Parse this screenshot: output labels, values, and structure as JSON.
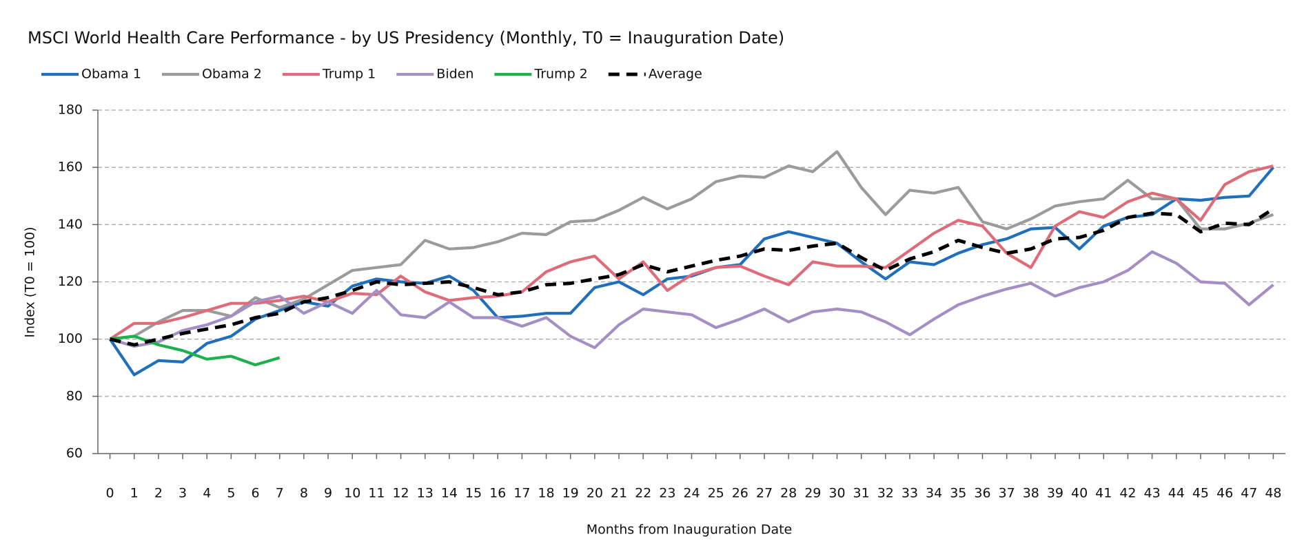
{
  "chart_data": {
    "type": "line",
    "title": "MSCI World Health Care Performance - by US Presidency (Monthly, T0 = Inauguration Date)",
    "x_label": "Months from Inauguration Date",
    "y_label": "Index (T0 = 100)",
    "x": [
      0,
      1,
      2,
      3,
      4,
      5,
      6,
      7,
      8,
      9,
      10,
      11,
      12,
      13,
      14,
      15,
      16,
      17,
      18,
      19,
      20,
      21,
      22,
      23,
      24,
      25,
      26,
      27,
      28,
      29,
      30,
      31,
      32,
      33,
      34,
      35,
      36,
      37,
      38,
      39,
      40,
      41,
      42,
      43,
      44,
      45,
      46,
      47,
      48
    ],
    "xlim": [
      -0.5,
      48.5
    ],
    "xticks": [
      0,
      1,
      2,
      3,
      4,
      5,
      6,
      7,
      8,
      9,
      10,
      11,
      12,
      13,
      14,
      15,
      16,
      17,
      18,
      19,
      20,
      21,
      22,
      23,
      24,
      25,
      26,
      27,
      28,
      29,
      30,
      31,
      32,
      33,
      34,
      35,
      36,
      37,
      38,
      39,
      40,
      41,
      42,
      43,
      44,
      45,
      46,
      47,
      48
    ],
    "ylim": [
      60,
      180
    ],
    "yticks": [
      60,
      80,
      100,
      120,
      140,
      160,
      180
    ],
    "grid": true,
    "legend": "top",
    "series": [
      {
        "name": "Obama 1",
        "color": "#1f6fba",
        "dash": false,
        "values": [
          100,
          87.5,
          92.5,
          92,
          98.5,
          101,
          107,
          110,
          113,
          111.5,
          118.5,
          121,
          120,
          119.5,
          122,
          117,
          107.5,
          108,
          109,
          109,
          118,
          120,
          115.5,
          121,
          122,
          125,
          126,
          135,
          137.5,
          135.5,
          133.5,
          127,
          121,
          127,
          126,
          130,
          133,
          135,
          138.5,
          139,
          131.5,
          139.5,
          142.5,
          143.5,
          149,
          148.5,
          149.5,
          150,
          160
        ]
      },
      {
        "name": "Obama 2",
        "color": "#9b9b9b",
        "dash": false,
        "values": [
          100,
          101,
          106,
          110,
          110,
          108,
          114.5,
          111,
          114,
          119,
          124,
          125,
          126,
          134.5,
          131.5,
          132,
          134,
          137,
          136.5,
          141,
          141.5,
          145,
          149.5,
          145.5,
          149,
          155,
          157,
          156.5,
          160.5,
          158.5,
          165.5,
          153,
          143.5,
          152,
          151,
          153,
          141,
          138.5,
          142,
          146.5,
          148,
          149,
          155.5,
          149,
          149,
          138.5,
          138.5,
          140.5,
          143.5
        ]
      },
      {
        "name": "Trump 1",
        "color": "#de6b78",
        "dash": false,
        "values": [
          100,
          105.5,
          105.5,
          107.5,
          110,
          112.5,
          112.5,
          113.5,
          115,
          113,
          116,
          115.5,
          122,
          116.5,
          113.5,
          114.5,
          115,
          116.5,
          123.5,
          127,
          129,
          121,
          127,
          117,
          122.5,
          125,
          125.5,
          122,
          119,
          127,
          125.5,
          125.5,
          125,
          131,
          137,
          141.5,
          139.5,
          130,
          125,
          139.5,
          144.5,
          142.5,
          148,
          151,
          149,
          141.5,
          154,
          158.5,
          160.5
        ]
      },
      {
        "name": "Biden",
        "color": "#a48ec4",
        "dash": false,
        "values": [
          100,
          97.5,
          99,
          103,
          105,
          108,
          113,
          115,
          109,
          113,
          109,
          117,
          108.5,
          107.5,
          113,
          107.5,
          107.5,
          104.5,
          107.5,
          101,
          97,
          105,
          110.5,
          109.5,
          108.5,
          104,
          107,
          110.5,
          106,
          109.5,
          110.5,
          109.5,
          106,
          101.5,
          107,
          112,
          115,
          117.5,
          119.5,
          115,
          118,
          120,
          124,
          130.5,
          126.5,
          120,
          119.5,
          112,
          119
        ]
      },
      {
        "name": "Trump 2",
        "color": "#1db14b",
        "dash": false,
        "values": [
          100,
          101,
          98,
          96,
          93,
          94,
          91,
          93.5,
          null,
          null,
          null,
          null,
          null,
          null,
          null,
          null,
          null,
          null,
          null,
          null,
          null,
          null,
          null,
          null,
          null,
          null,
          null,
          null,
          null,
          null,
          null,
          null,
          null,
          null,
          null,
          null,
          null,
          null,
          null,
          null,
          null,
          null,
          null,
          null,
          null,
          null,
          null,
          null,
          null
        ]
      },
      {
        "name": "Average",
        "color": "#000000",
        "dash": true,
        "values": [
          100,
          98,
          100,
          102,
          103.5,
          105,
          107.5,
          109,
          113,
          114.5,
          117,
          120,
          119,
          119.5,
          120,
          118,
          115.5,
          116.5,
          119,
          119.5,
          121,
          122.5,
          126,
          123.5,
          125.5,
          127.5,
          129,
          131.5,
          131,
          132.5,
          133.5,
          128.5,
          124,
          128,
          130.5,
          134.5,
          132,
          130,
          131.5,
          135,
          135.5,
          138,
          142.5,
          144,
          143.5,
          137.5,
          140.5,
          140,
          145.5
        ]
      }
    ]
  }
}
